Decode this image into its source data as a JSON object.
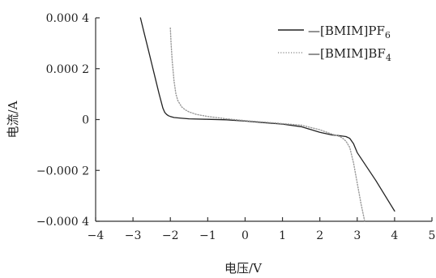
{
  "chart_data": {
    "type": "line",
    "xlabel": "电压/V",
    "ylabel": "电流/A",
    "xlim": [
      -4,
      5
    ],
    "ylim": [
      -0.0004,
      0.0004
    ],
    "grid": false,
    "legend_position": "top-right",
    "x_ticks": [
      -4,
      -3,
      -2,
      -1,
      0,
      1,
      2,
      3,
      4,
      5
    ],
    "x_tick_labels": [
      "−4",
      "−3",
      "−2",
      "−1",
      "0",
      "1",
      "2",
      "3",
      "4",
      "5"
    ],
    "y_ticks": [
      0.0004,
      0.0002,
      0,
      -0.0002,
      -0.0004
    ],
    "y_tick_labels": [
      "0.000 4",
      "0.000 2",
      "0",
      "−0.000 2",
      "−0.000 4"
    ],
    "series": [
      {
        "name": "—[BMIM]PF",
        "name_subscript": "6",
        "color": "#222222",
        "dash": "solid",
        "x": [
          -2.8,
          -2.7,
          -2.6,
          -2.5,
          -2.4,
          -2.3,
          -2.2,
          -2.15,
          -2.1,
          -2.05,
          -2.0,
          -1.9,
          -1.7,
          -1.5,
          -1.0,
          -0.5,
          0.0,
          0.5,
          1.0,
          1.5,
          2.0,
          2.3,
          2.5,
          2.6,
          2.7,
          2.8,
          2.9,
          3.0,
          3.5,
          4.0
        ],
        "y": [
          0.0004,
          0.00034,
          0.00028,
          0.00022,
          0.00016,
          0.0001,
          4.5e-05,
          2.8e-05,
          2e-05,
          1.5e-05,
          1.2e-05,
          8e-06,
          5e-06,
          3e-06,
          1e-06,
          -1e-06,
          -6e-06,
          -1.2e-05,
          -1.8e-05,
          -2.8e-05,
          -5e-05,
          -6e-05,
          -6.3e-05,
          -6.5e-05,
          -6.7e-05,
          -7.4e-05,
          -9.5e-05,
          -0.00013,
          -0.00024,
          -0.00036
        ]
      },
      {
        "name": "—[BMIM]BF",
        "name_subscript": "4",
        "color": "#999999",
        "dash": "dotted",
        "x": [
          -2.0,
          -1.98,
          -1.95,
          -1.9,
          -1.85,
          -1.8,
          -1.7,
          -1.6,
          -1.5,
          -1.3,
          -1.0,
          -0.5,
          0.0,
          0.5,
          1.0,
          1.5,
          2.0,
          2.3,
          2.5,
          2.6,
          2.7,
          2.8,
          2.9,
          3.0,
          3.1,
          3.2
        ],
        "y": [
          0.00036,
          0.0003,
          0.00023,
          0.00015,
          0.0001,
          7.5e-05,
          5e-05,
          3.8e-05,
          3e-05,
          2e-05,
          1.2e-05,
          3e-06,
          -4e-06,
          -1e-05,
          -1.6e-05,
          -2.2e-05,
          -4e-05,
          -5.6e-05,
          -6.5e-05,
          -7.2e-05,
          -8.5e-05,
          -0.00011,
          -0.00017,
          -0.00025,
          -0.00033,
          -0.0004
        ]
      }
    ]
  }
}
